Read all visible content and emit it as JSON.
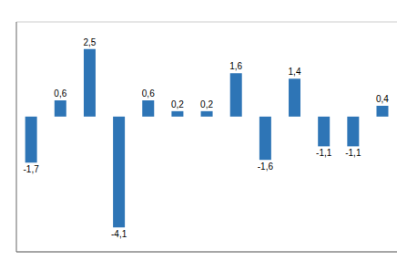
{
  "chart_data": {
    "type": "bar",
    "categories": [
      null,
      null,
      null,
      null,
      null,
      null,
      null,
      null,
      null,
      null,
      null,
      null,
      null
    ],
    "values": [
      -1.7,
      0.6,
      2.5,
      -4.1,
      0.6,
      0.2,
      0.2,
      1.6,
      -1.6,
      1.4,
      -1.1,
      -1.1,
      0.4
    ],
    "value_labels": [
      "-1,7",
      "0,6",
      "2,5",
      "-4,1",
      "0,6",
      "0,2",
      "0,2",
      "1,6",
      "-1,6",
      "1,4",
      "-1,1",
      "-1,1",
      "0,4"
    ],
    "color": "#2E75B6",
    "ylim": [
      -5.0,
      3.5
    ],
    "yticks": [
      -4,
      -2,
      0,
      2
    ],
    "grid": true,
    "data_labels": true,
    "tick_labels": false
  }
}
